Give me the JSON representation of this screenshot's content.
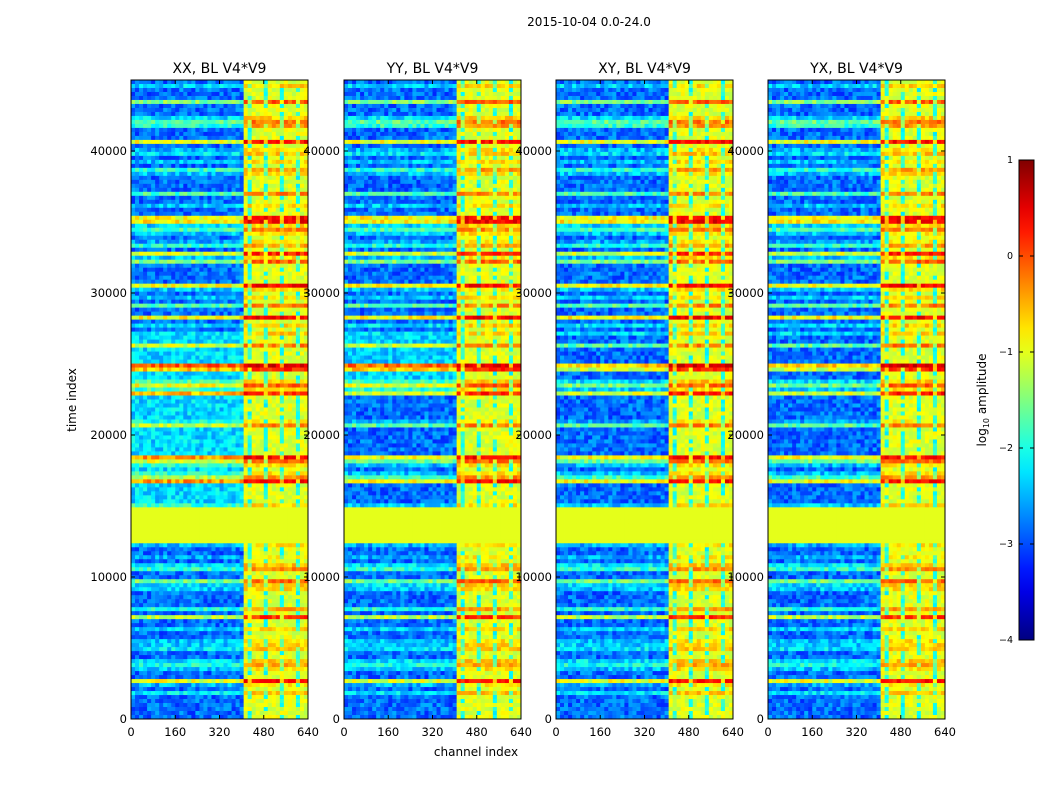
{
  "figure": {
    "title": "2015-10-04 0.0-24.0"
  },
  "chart_data": {
    "type": "heatmap",
    "title": "2015-10-04 0.0-24.0",
    "xlabel": "channel index",
    "ylabel": "time index",
    "xlim": [
      0,
      640
    ],
    "ylim": [
      0,
      45000
    ],
    "xticks": [
      0,
      160,
      320,
      480,
      640
    ],
    "yticks": [
      0,
      10000,
      20000,
      30000,
      40000
    ],
    "xtick_labels": [
      "0",
      "160",
      "320",
      "480",
      "640"
    ],
    "ytick_labels": [
      "0",
      "10000",
      "20000",
      "30000",
      "40000"
    ],
    "panels": [
      {
        "title": "XX, BL V4*V9",
        "pol": "XX",
        "band_start": 400,
        "band_end": 640
      },
      {
        "title": "YY, BL V4*V9",
        "pol": "YY",
        "band_start": 400,
        "band_end": 640
      },
      {
        "title": "XY, BL V4*V9",
        "pol": "XY",
        "band_start": 400,
        "band_end": 640
      },
      {
        "title": "YX, BL V4*V9",
        "pol": "YX",
        "band_start": 400,
        "band_end": 640
      }
    ],
    "flagged_time_range": [
      12300,
      14800
    ],
    "flagged_value": -1.0,
    "colorbar": {
      "label_prefix": "log",
      "label_sub": "10",
      "label_suffix": " amplitude",
      "vmin": -4,
      "vmax": 1,
      "ticks": [
        -4,
        -3,
        -2,
        -1,
        0,
        1
      ],
      "tick_labels": [
        "−4",
        "−3",
        "−2",
        "−1",
        "0",
        "1"
      ],
      "colormap": "jet"
    }
  }
}
